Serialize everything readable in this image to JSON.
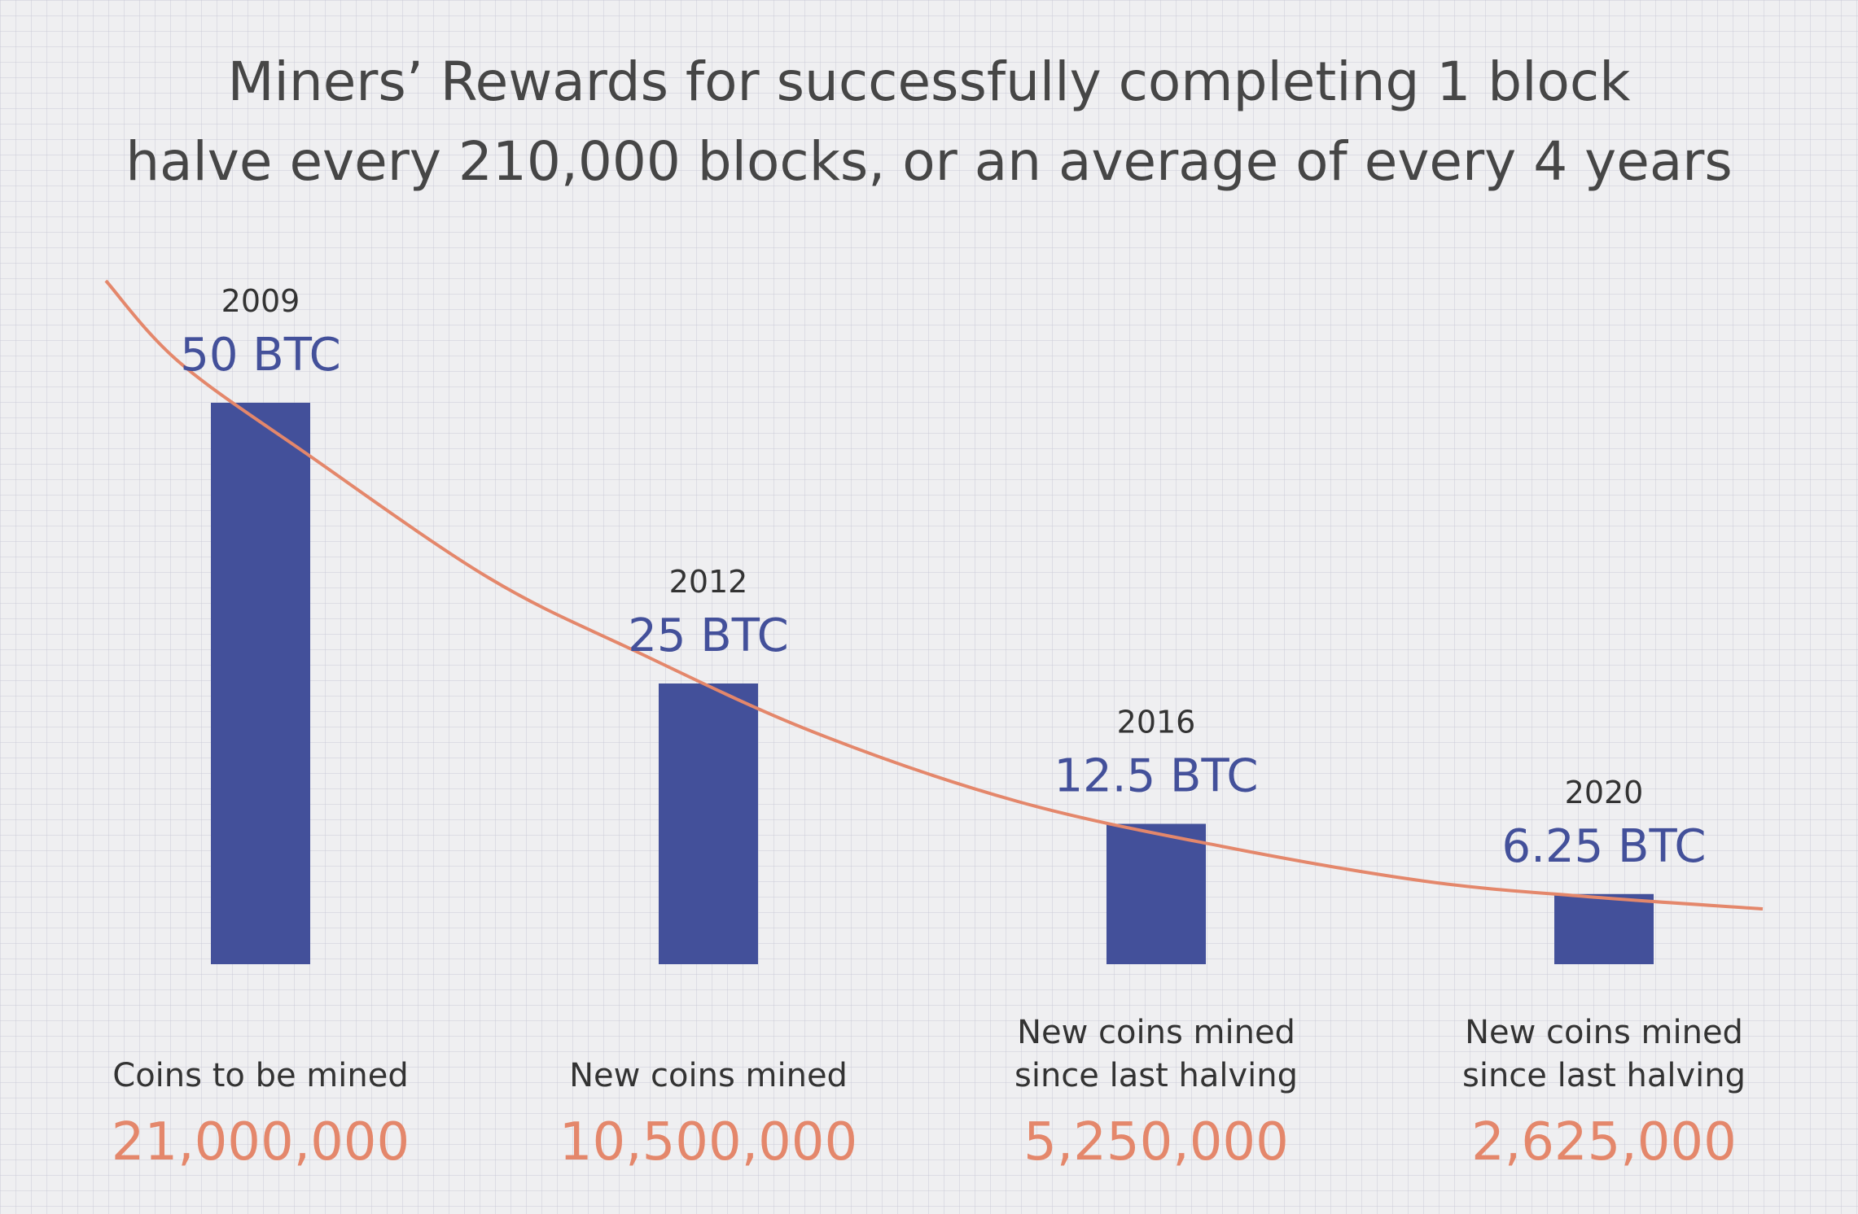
{
  "title": {
    "line1": "Miners’ Rewards for successfully completing 1 block",
    "line2": "halve every 210,000 blocks, or an average of every 4 years"
  },
  "colors": {
    "bar": "#43509a",
    "curve": "#e4876b",
    "count_text": "#e4876b",
    "label_text": "#333333",
    "title_text": "#464646"
  },
  "chart_data": {
    "type": "bar",
    "categories": [
      "2009",
      "2012",
      "2016",
      "2020"
    ],
    "values": [
      50,
      25,
      12.5,
      6.25
    ],
    "value_labels": [
      "50 BTC",
      "25 BTC",
      "12.5 BTC",
      "6.25 BTC"
    ],
    "descriptions": [
      [
        "Coins to be mined"
      ],
      [
        "New coins mined"
      ],
      [
        "New coins mined",
        "since last halving"
      ],
      [
        "New coins mined",
        "since last halving"
      ]
    ],
    "counts": [
      "21,000,000",
      "10,500,000",
      "5,250,000",
      "2,625,000"
    ],
    "trend_line": "decay curve",
    "ylim": [
      0,
      50
    ],
    "grid": true,
    "title": "Miners’ Rewards for successfully completing 1 block halve every 210,000 blocks, or an average of every 4 years",
    "xlabel": "",
    "ylabel": ""
  }
}
